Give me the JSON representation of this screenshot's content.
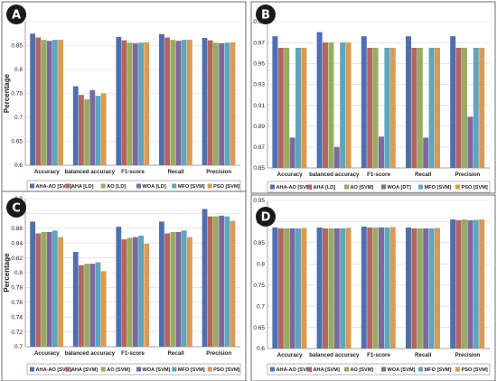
{
  "colors": [
    "#4e6fb0",
    "#b4655f",
    "#97ac5f",
    "#7e68a0",
    "#5ea5bd",
    "#d99a52"
  ],
  "chart_data": [
    {
      "type": "bar",
      "panel": "A",
      "ylabel": "Percentage",
      "ylim": [
        0.6,
        0.9
      ],
      "ticks": [
        0.6,
        0.65,
        0.7,
        0.75,
        0.8,
        0.85,
        0.9
      ],
      "tick_labels": [
        "0.6",
        "0.65",
        "0.7",
        "0.75",
        "0.8",
        "0.85",
        "0.9"
      ],
      "categories": [
        "Accuracy",
        "balanced accuracy",
        "F1-score",
        "Recall",
        "Precision"
      ],
      "series": [
        {
          "name": "AHA-AO [SVM]",
          "values": [
            0.875,
            0.765,
            0.868,
            0.874,
            0.866
          ]
        },
        {
          "name": "AHA [LD]",
          "values": [
            0.867,
            0.747,
            0.861,
            0.867,
            0.861
          ]
        },
        {
          "name": "AO [LD]",
          "values": [
            0.862,
            0.738,
            0.856,
            0.862,
            0.856
          ]
        },
        {
          "name": "WOA [LD]",
          "values": [
            0.86,
            0.757,
            0.855,
            0.86,
            0.855
          ]
        },
        {
          "name": "MFO [SVM]",
          "values": [
            0.862,
            0.745,
            0.856,
            0.862,
            0.856
          ]
        },
        {
          "name": "PSO [SVM]",
          "values": [
            0.862,
            0.75,
            0.857,
            0.862,
            0.857
          ]
        }
      ],
      "legend": "bottom",
      "grid": true
    },
    {
      "type": "bar",
      "panel": "B",
      "ylim": [
        0.85,
        0.99
      ],
      "ticks": [
        0.85,
        0.87,
        0.89,
        0.91,
        0.93,
        0.95,
        0.97,
        0.99
      ],
      "tick_labels": [
        "0.85",
        "0.87",
        "0.89",
        "0.91",
        "0.93",
        "0.95",
        "0.97",
        "0.99"
      ],
      "categories": [
        "Accuracy",
        "balanced accuracy",
        "F1-score",
        "Recall",
        "Precision"
      ],
      "series": [
        {
          "name": "AHA-AO [SVM]",
          "values": [
            0.976,
            0.98,
            0.976,
            0.976,
            0.976
          ]
        },
        {
          "name": "AHA [LD]",
          "values": [
            0.965,
            0.97,
            0.965,
            0.965,
            0.965
          ]
        },
        {
          "name": "AO [SVM]",
          "values": [
            0.965,
            0.97,
            0.965,
            0.965,
            0.965
          ]
        },
        {
          "name": "WOA [DT]",
          "values": [
            0.879,
            0.87,
            0.88,
            0.879,
            0.899
          ]
        },
        {
          "name": "MFO [SVM]",
          "values": [
            0.965,
            0.97,
            0.965,
            0.965,
            0.965
          ]
        },
        {
          "name": "PSO [SVM]",
          "values": [
            0.965,
            0.97,
            0.965,
            0.965,
            0.965
          ]
        }
      ],
      "legend": "bottom",
      "grid": true
    },
    {
      "type": "bar",
      "panel": "C",
      "ylabel": "Percentage",
      "ylim": [
        0.7,
        0.9
      ],
      "ticks": [
        0.7,
        0.72,
        0.74,
        0.76,
        0.78,
        0.8,
        0.82,
        0.84,
        0.86,
        0.88,
        0.9
      ],
      "tick_labels": [
        "0.7",
        "0.72",
        "0.74",
        "0.76",
        "0.78",
        "0.8",
        "0.82",
        "0.84",
        "0.86",
        "0.88",
        "0.9"
      ],
      "categories": [
        "Accuracy",
        "balanced accuracy",
        "F1-score",
        "Recall",
        "Precision"
      ],
      "series": [
        {
          "name": "AHA-AO [SVM]",
          "values": [
            0.869,
            0.828,
            0.862,
            0.869,
            0.886
          ]
        },
        {
          "name": "AHA [SVM]",
          "values": [
            0.853,
            0.81,
            0.845,
            0.853,
            0.876
          ]
        },
        {
          "name": "AO [SVM]",
          "values": [
            0.855,
            0.812,
            0.847,
            0.855,
            0.876
          ]
        },
        {
          "name": "WOA [SVM]",
          "values": [
            0.855,
            0.812,
            0.848,
            0.855,
            0.877
          ]
        },
        {
          "name": "MFO [SVM]",
          "values": [
            0.857,
            0.814,
            0.85,
            0.857,
            0.876
          ]
        },
        {
          "name": "PSO [SVM]",
          "values": [
            0.848,
            0.802,
            0.839,
            0.848,
            0.87
          ]
        }
      ],
      "legend": "bottom",
      "grid": true
    },
    {
      "type": "bar",
      "panel": "D",
      "ylim": [
        0.6,
        0.95
      ],
      "ticks": [
        0.6,
        0.65,
        0.7,
        0.75,
        0.8,
        0.85,
        0.9,
        0.95
      ],
      "tick_labels": [
        "0.6",
        "0.65",
        "0.7",
        "0.75",
        "0.8",
        "0.85",
        "0.9",
        "0.95"
      ],
      "categories": [
        "Accuracy",
        "balanced accuracy",
        "F1-score",
        "Recall",
        "Precision"
      ],
      "series": [
        {
          "name": "AHA-AO [SVM]",
          "values": [
            0.886,
            0.886,
            0.888,
            0.886,
            0.905
          ]
        },
        {
          "name": "AHA [SVM]",
          "values": [
            0.884,
            0.884,
            0.886,
            0.884,
            0.903
          ]
        },
        {
          "name": "AO [SVM]",
          "values": [
            0.884,
            0.884,
            0.886,
            0.884,
            0.905
          ]
        },
        {
          "name": "WOA [SVM]",
          "values": [
            0.884,
            0.884,
            0.886,
            0.884,
            0.903
          ]
        },
        {
          "name": "MFO [SVM]",
          "values": [
            0.884,
            0.884,
            0.886,
            0.884,
            0.904
          ]
        },
        {
          "name": "PSO [SVM]",
          "values": [
            0.885,
            0.885,
            0.887,
            0.885,
            0.905
          ]
        }
      ],
      "legend": "bottom",
      "grid": true
    }
  ]
}
